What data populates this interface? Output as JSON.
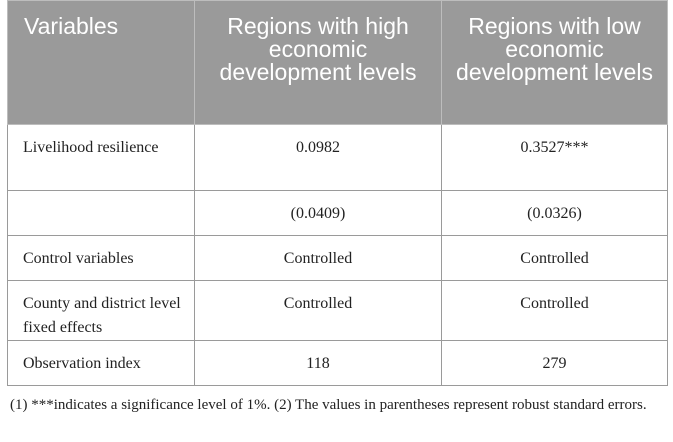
{
  "table": {
    "headers": [
      "Variables",
      "Regions with high economic development levels",
      "Regions with low economic development levels"
    ],
    "rows": [
      [
        "Livelihood resilience",
        "0.0982",
        "0.3527***"
      ],
      [
        "",
        "(0.0409)",
        "(0.0326)"
      ],
      [
        "Control variables",
        "Controlled",
        "Controlled"
      ],
      [
        "County and district level fixed effects",
        "Controlled",
        "Controlled"
      ],
      [
        "Observation index",
        "118",
        "279"
      ]
    ]
  },
  "footnote": "(1) ***indicates a significance level of 1%. (2) The values in parentheses represent robust standard errors.",
  "colors": {
    "header_bg": "#9a9a9a",
    "header_text": "#ffffff",
    "border": "#9a9a9a",
    "body_text": "#222222"
  }
}
